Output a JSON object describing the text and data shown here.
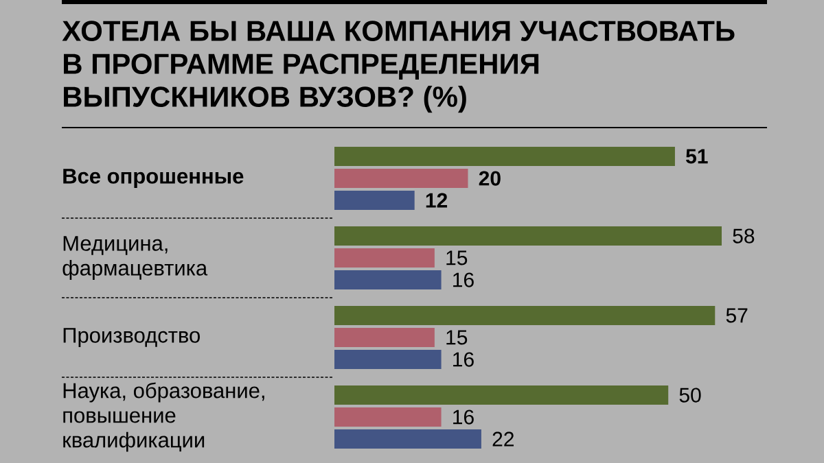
{
  "chart_data": {
    "type": "bar",
    "orientation": "horizontal",
    "title": "ХОТЕЛА БЫ ВАША КОМПАНИЯ УЧАСТВОВАТЬ В ПРОГРАММЕ РАСПРЕДЕЛЕНИЯ ВЫПУСКНИКОВ ВУЗОВ? (%)",
    "categories": [
      "Все опрошенные",
      "Медицина, фармацевтика",
      "Производство",
      "Наука, образование, повышение квалификации"
    ],
    "series": [
      {
        "color": "#566b30",
        "values": [
          51,
          58,
          57,
          50
        ]
      },
      {
        "color": "#b0606c",
        "values": [
          20,
          15,
          15,
          16
        ]
      },
      {
        "color": "#435585",
        "values": [
          12,
          16,
          16,
          22
        ]
      }
    ],
    "data_labels": true
  }
}
